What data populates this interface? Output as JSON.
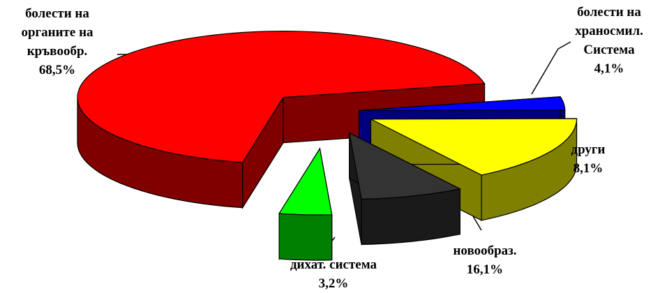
{
  "chart_data": {
    "type": "pie",
    "style": "3d-exploded",
    "legend": "none",
    "categories": [
      "болести на органите на кръвообр.",
      "болести на храносмил. Система",
      "други",
      "новообраз.",
      "дихат. система"
    ],
    "values": [
      68.5,
      4.1,
      8.1,
      16.1,
      3.2
    ],
    "colors": [
      "#ff0000",
      "#00ff00",
      "#333333",
      "#ffff00",
      "#0000ff"
    ],
    "data_labels": [
      {
        "lines": [
          "болести на",
          "органите на",
          "кръвообр."
        ],
        "value_text": "68,5%"
      },
      {
        "lines": [
          "болести на",
          "храносмил.",
          "Система"
        ],
        "value_text": "4,1%"
      },
      {
        "lines": [
          "други"
        ],
        "value_text": "8,1%"
      },
      {
        "lines": [
          "новообраз."
        ],
        "value_text": "16,1%"
      },
      {
        "lines": [
          "дихат. система"
        ],
        "value_text": "3,2%"
      }
    ]
  }
}
